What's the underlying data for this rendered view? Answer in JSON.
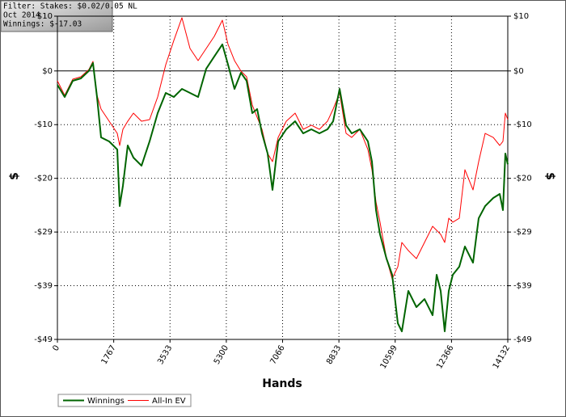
{
  "chart_data": {
    "type": "line",
    "annotations": [
      "Filter: Stakes: $0.02/0.05 NL",
      "Oct 2014",
      "Winnings: $-17.03"
    ],
    "x_label": "Hands",
    "y_label": "$",
    "xlim": [
      0,
      14132
    ],
    "xticks": [
      0,
      1767,
      3533,
      5300,
      7066,
      8833,
      10599,
      12366,
      14132
    ],
    "ylim": [
      -49,
      10
    ],
    "yticks": [
      {
        "value": 10,
        "label": "$10"
      },
      {
        "value": 0,
        "label": "$0"
      },
      {
        "value": -9.8,
        "label": "-$10"
      },
      {
        "value": -19.6,
        "label": "-$20"
      },
      {
        "value": -29.4,
        "label": "-$29"
      },
      {
        "value": -39.2,
        "label": "-$39"
      },
      {
        "value": -49,
        "label": "-$49"
      }
    ],
    "grid": true,
    "legend": "bottom-left",
    "x": [
      0,
      228,
      482,
      736,
      989,
      1116,
      1243,
      1370,
      1624,
      1878,
      1954,
      2055,
      2207,
      2385,
      2639,
      2892,
      3146,
      3400,
      3654,
      3907,
      4161,
      4415,
      4669,
      4922,
      5176,
      5354,
      5557,
      5759,
      5937,
      6115,
      6267,
      6420,
      6597,
      6749,
      6927,
      7181,
      7459,
      7713,
      7967,
      8221,
      8474,
      8652,
      8855,
      9058,
      9235,
      9489,
      9743,
      9870,
      9997,
      10123,
      10326,
      10504,
      10682,
      10808,
      11011,
      11265,
      11519,
      11773,
      11900,
      12026,
      12153,
      12280,
      12407,
      12610,
      12787,
      13041,
      13219,
      13422,
      13676,
      13879,
      13980,
      14056,
      14132
    ],
    "series": [
      {
        "name": "Winnings",
        "color": "#006400",
        "values": [
          -2.54,
          -4.75,
          -1.8,
          -1.36,
          0.03,
          1.45,
          -4.75,
          -12.13,
          -12.86,
          -14.34,
          -24.66,
          -20.98,
          -13.6,
          -15.81,
          -17.29,
          -12.86,
          -7.7,
          -4.01,
          -4.75,
          -3.28,
          -4.01,
          -4.75,
          0.41,
          2.63,
          4.84,
          1.15,
          -3.28,
          -0.33,
          -1.8,
          -7.7,
          -6.96,
          -11.39,
          -15.08,
          -21.71,
          -12.86,
          -10.65,
          -9.18,
          -11.39,
          -10.65,
          -11.39,
          -10.65,
          -9.18,
          -3.28,
          -9.91,
          -11.39,
          -10.65,
          -12.86,
          -16.55,
          -25.4,
          -29.83,
          -34.25,
          -37.2,
          -46.05,
          -47.53,
          -40.15,
          -43.1,
          -41.63,
          -44.58,
          -37.2,
          -40.15,
          -47.53,
          -40.15,
          -37.2,
          -35.73,
          -32.04,
          -34.99,
          -26.88,
          -24.66,
          -23.19,
          -22.45,
          -25.4,
          -15.08,
          -17.03
        ]
      },
      {
        "name": "All-In EV",
        "color": "#ff0000",
        "values": [
          -1.8,
          -4.46,
          -1.51,
          -1.06,
          0.27,
          1.74,
          -4.46,
          -6.96,
          -9.18,
          -11.39,
          -13.6,
          -10.65,
          -9.18,
          -7.7,
          -9.18,
          -8.88,
          -4.75,
          1.15,
          5.58,
          9.71,
          4.1,
          1.89,
          4.1,
          6.31,
          9.26,
          4.84,
          1.89,
          -0.03,
          -1.06,
          -6.23,
          -8.44,
          -10.65,
          -15.08,
          -16.55,
          -12.13,
          -9.18,
          -7.7,
          -10.65,
          -9.91,
          -10.65,
          -9.18,
          -6.96,
          -4.01,
          -11.39,
          -12.13,
          -10.65,
          -14.34,
          -18.03,
          -23.93,
          -27.61,
          -34.25,
          -37.94,
          -35.73,
          -31.3,
          -32.78,
          -34.25,
          -31.3,
          -28.35,
          -29.09,
          -29.83,
          -31.3,
          -26.88,
          -27.61,
          -26.88,
          -18.03,
          -21.71,
          -16.55,
          -11.39,
          -12.13,
          -13.6,
          -12.86,
          -7.7,
          -8.88
        ]
      }
    ]
  }
}
